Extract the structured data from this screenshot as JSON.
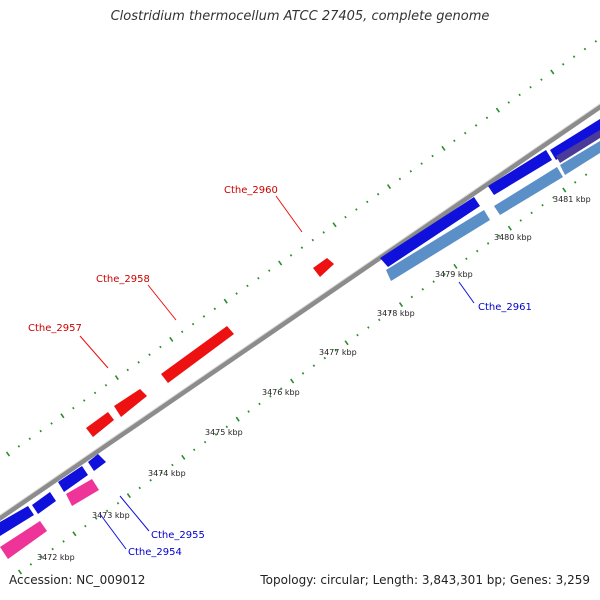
{
  "title": "Clostridium thermocellum ATCC 27405, complete genome",
  "accession": "Accession: NC_009012",
  "summary": "Topology: circular; Length: 3,843,301 bp; Genes: 3,259",
  "colors": {
    "backbone": "#8c8c8c",
    "tick": "#2e8b2e",
    "forward_gene": "#ee1111",
    "reverse_gene": "#1010dd",
    "reverse_gene_2": "#ee3399",
    "reverse_gene_3": "#5b8fc7",
    "forward_label": "#cc0000",
    "reverse_label": "#0000cc"
  },
  "scale_labels": [
    "3472 kbp",
    "3473 kbp",
    "3474 kbp",
    "3475 kbp",
    "3476 kbp",
    "3477 kbp",
    "3478 kbp",
    "3479 kbp",
    "3480 kbp",
    "3481 kbp"
  ],
  "gene_labels": [
    {
      "text": "Cthe_2960",
      "strand": "forward"
    },
    {
      "text": "Cthe_2958",
      "strand": "forward"
    },
    {
      "text": "Cthe_2957",
      "strand": "forward"
    },
    {
      "text": "Cthe_2961",
      "strand": "reverse"
    },
    {
      "text": "Cthe_2955",
      "strand": "reverse"
    },
    {
      "text": "Cthe_2954",
      "strand": "reverse"
    }
  ]
}
